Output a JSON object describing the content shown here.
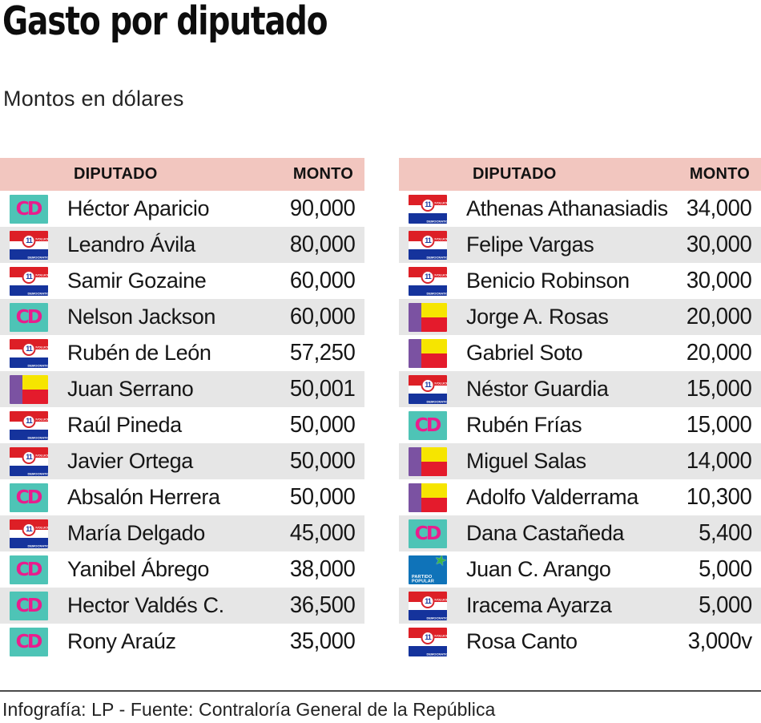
{
  "title": "Gasto por diputado",
  "subtitle": "Montos en dólares",
  "footer": "Infografía: LP - Fuente: Contraloría General de la República",
  "columns": {
    "diputado": "DIPUTADO",
    "monto": "MONTO"
  },
  "colors": {
    "header_bg": "#f2c6bf",
    "row_alt_bg": "#e6e6e6",
    "cd_teal": "#4ec4b6",
    "cd_pink": "#ea1d8d",
    "prd_red": "#dd1f26",
    "prd_blue": "#15339c",
    "pan_purple": "#7b52a2",
    "pan_yellow": "#f6e500",
    "pan_red": "#e41b2c",
    "pp_blue": "#0f73b9",
    "pp_green": "#3cb54a"
  },
  "parties": {
    "cd": {
      "icon": "cd-logo",
      "text": "CD"
    },
    "prd": {
      "icon": "prd-logo",
      "top": "REVOLUCIONARIO",
      "number": "11",
      "bottom": "DEMOCRATICO"
    },
    "pan": {
      "icon": "panamenista-flag-logo"
    },
    "pp": {
      "icon": "partido-popular-logo",
      "lines": [
        "PARTIDO",
        "POPULAR"
      ],
      "star": "★"
    }
  },
  "tables": [
    {
      "rows": [
        {
          "party": "cd",
          "name": "Héctor Aparicio",
          "monto": "90,000"
        },
        {
          "party": "prd",
          "name": "Leandro Ávila",
          "monto": "80,000"
        },
        {
          "party": "prd",
          "name": "Samir Gozaine",
          "monto": "60,000"
        },
        {
          "party": "cd",
          "name": "Nelson Jackson",
          "monto": "60,000"
        },
        {
          "party": "prd",
          "name": "Rubén de León",
          "monto": "57,250"
        },
        {
          "party": "pan",
          "name": "Juan Serrano",
          "monto": "50,001"
        },
        {
          "party": "prd",
          "name": "Raúl Pineda",
          "monto": "50,000"
        },
        {
          "party": "prd",
          "name": "Javier Ortega",
          "monto": "50,000"
        },
        {
          "party": "cd",
          "name": "Absalón Herrera",
          "monto": "50,000"
        },
        {
          "party": "prd",
          "name": "María Delgado",
          "monto": "45,000"
        },
        {
          "party": "cd",
          "name": "Yanibel Ábrego",
          "monto": "38,000"
        },
        {
          "party": "cd",
          "name": "Hector Valdés C.",
          "monto": "36,500"
        },
        {
          "party": "cd",
          "name": "Rony Araúz",
          "monto": "35,000"
        }
      ]
    },
    {
      "rows": [
        {
          "party": "prd",
          "name": "Athenas Athanasiadis",
          "monto": "34,000"
        },
        {
          "party": "prd",
          "name": "Felipe Vargas",
          "monto": "30,000"
        },
        {
          "party": "prd",
          "name": "Benicio Robinson",
          "monto": "30,000"
        },
        {
          "party": "pan",
          "name": "Jorge A. Rosas",
          "monto": "20,000"
        },
        {
          "party": "pan",
          "name": "Gabriel Soto",
          "monto": "20,000"
        },
        {
          "party": "prd",
          "name": "Néstor Guardia",
          "monto": "15,000"
        },
        {
          "party": "cd",
          "name": "Rubén Frías",
          "monto": "15,000"
        },
        {
          "party": "pan",
          "name": "Miguel Salas",
          "monto": "14,000"
        },
        {
          "party": "pan",
          "name": "Adolfo Valderrama",
          "monto": "10,300"
        },
        {
          "party": "cd",
          "name": "Dana Castañeda",
          "monto": "5,400"
        },
        {
          "party": "pp",
          "name": "Juan C. Arango",
          "monto": "5,000"
        },
        {
          "party": "prd",
          "name": "Iracema Ayarza",
          "monto": "5,000"
        },
        {
          "party": "prd",
          "name": "Rosa Canto",
          "monto": "3,000v"
        }
      ]
    }
  ],
  "chart_data": {
    "type": "table",
    "title": "Gasto por diputado",
    "subtitle": "Montos en dólares",
    "columns": [
      "DIPUTADO",
      "PARTIDO",
      "MONTO"
    ],
    "rows": [
      [
        "Héctor Aparicio",
        "CD",
        90000
      ],
      [
        "Leandro Ávila",
        "PRD",
        80000
      ],
      [
        "Samir Gozaine",
        "PRD",
        60000
      ],
      [
        "Nelson Jackson",
        "CD",
        60000
      ],
      [
        "Rubén de León",
        "PRD",
        57250
      ],
      [
        "Juan Serrano",
        "Panameñista",
        50001
      ],
      [
        "Raúl Pineda",
        "PRD",
        50000
      ],
      [
        "Javier Ortega",
        "PRD",
        50000
      ],
      [
        "Absalón Herrera",
        "CD",
        50000
      ],
      [
        "María Delgado",
        "PRD",
        45000
      ],
      [
        "Yanibel Ábrego",
        "CD",
        38000
      ],
      [
        "Hector Valdés C.",
        "CD",
        36500
      ],
      [
        "Rony Araúz",
        "CD",
        35000
      ],
      [
        "Athenas Athanasiadis",
        "PRD",
        34000
      ],
      [
        "Felipe Vargas",
        "PRD",
        30000
      ],
      [
        "Benicio Robinson",
        "PRD",
        30000
      ],
      [
        "Jorge A. Rosas",
        "Panameñista",
        20000
      ],
      [
        "Gabriel Soto",
        "Panameñista",
        20000
      ],
      [
        "Néstor Guardia",
        "PRD",
        15000
      ],
      [
        "Rubén Frías",
        "CD",
        15000
      ],
      [
        "Miguel Salas",
        "Panameñista",
        14000
      ],
      [
        "Adolfo Valderrama",
        "Panameñista",
        10300
      ],
      [
        "Dana Castañeda",
        "CD",
        5400
      ],
      [
        "Juan C. Arango",
        "Partido Popular",
        5000
      ],
      [
        "Iracema Ayarza",
        "PRD",
        5000
      ],
      [
        "Rosa Canto",
        "PRD",
        3000
      ]
    ],
    "note_last_value_displayed_as": "3,000v"
  }
}
